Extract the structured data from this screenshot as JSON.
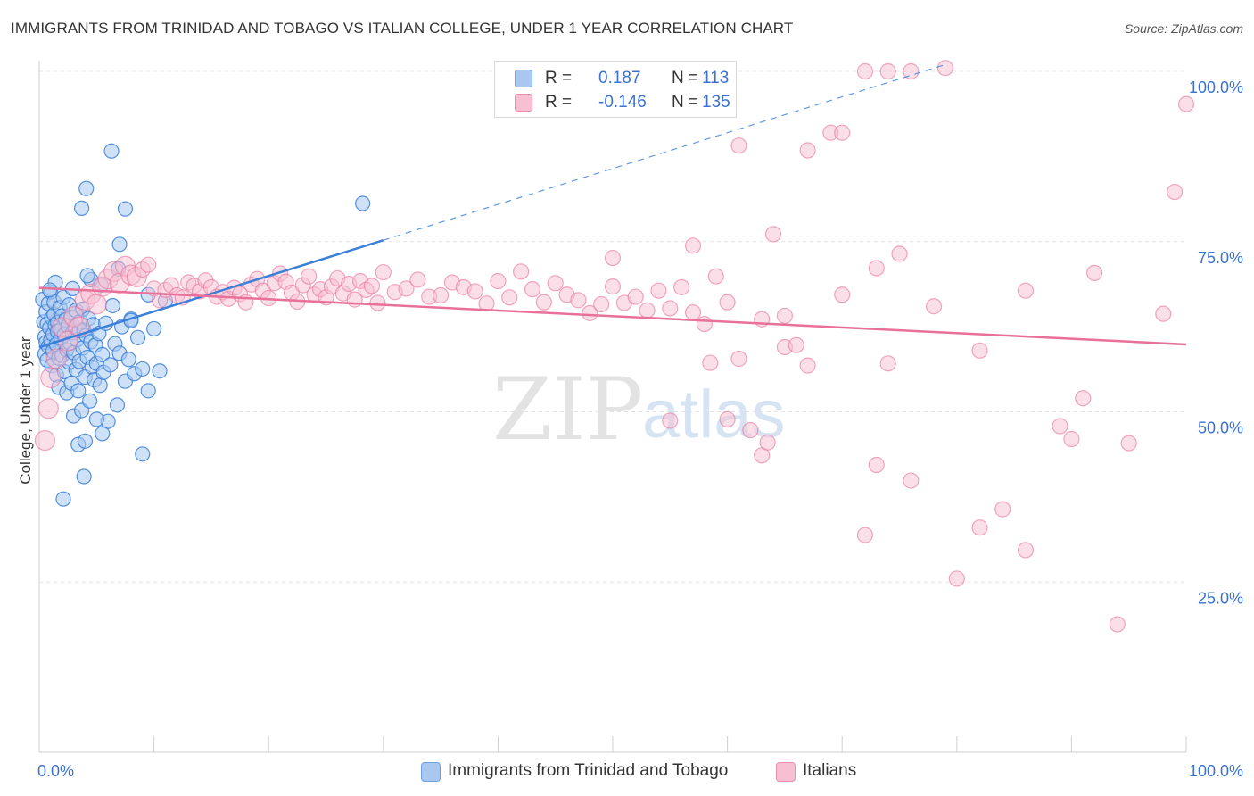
{
  "title": "IMMIGRANTS FROM TRINIDAD AND TOBAGO VS ITALIAN COLLEGE, UNDER 1 YEAR CORRELATION CHART",
  "source": "Source: ZipAtlas.com",
  "watermark": {
    "zip": "ZIP",
    "atlas": "atlas"
  },
  "stats": [
    {
      "r_label": "R =",
      "r_value": "0.187",
      "n_label": "N =",
      "n_value": "113",
      "color": "#a8c8f0",
      "border": "#6fa0e0"
    },
    {
      "r_label": "R =",
      "r_value": "-0.146",
      "n_label": "N =",
      "n_value": "135",
      "color": "#f7bfd2",
      "border": "#ea8eae"
    }
  ],
  "legend": [
    {
      "label": "Immigrants from Trinidad and Tobago",
      "color": "#a8c8f0",
      "border": "#6fa0e0"
    },
    {
      "label": "Italians",
      "color": "#f7bfd2",
      "border": "#ea8eae"
    }
  ],
  "colors": {
    "blue": "#3a7fd8",
    "blue_fill": "#a8c8f0",
    "pink": "#e8709a",
    "pink_fill": "#f7bfd2",
    "grid": "#e4e4e4",
    "tick_text": "#3a72d0"
  },
  "chart_data": {
    "type": "scatter",
    "xlabel": "",
    "ylabel": "College, Under 1 year",
    "xlim": [
      0,
      100
    ],
    "ylim": [
      0,
      100
    ],
    "x_tick_labels": [
      "0.0%",
      "100.0%"
    ],
    "y_ticks": [
      25,
      50,
      75,
      100
    ],
    "y_tick_labels": [
      "25.0%",
      "50.0%",
      "75.0%",
      "100.0%"
    ],
    "grid": true,
    "legend_position": "bottom",
    "series": [
      {
        "name": "Immigrants from Trinidad and Tobago",
        "r": 0.187,
        "n": 113,
        "trend": {
          "x0": 0,
          "y0": 59.5,
          "x1": 30,
          "y1": 75.2,
          "dashed_to_x": 79,
          "dashed_to_y": 101
        },
        "points": [
          [
            0.3,
            66.5
          ],
          [
            0.4,
            63.2
          ],
          [
            0.5,
            61.0
          ],
          [
            0.5,
            58.5
          ],
          [
            0.6,
            64.7
          ],
          [
            0.6,
            60.2
          ],
          [
            0.7,
            57.6
          ],
          [
            0.7,
            62.9
          ],
          [
            0.8,
            65.9
          ],
          [
            0.8,
            59.6
          ],
          [
            0.9,
            62.3
          ],
          [
            1.0,
            67.6
          ],
          [
            1.0,
            60.5
          ],
          [
            1.1,
            63.8
          ],
          [
            1.1,
            56.8
          ],
          [
            1.2,
            61.4
          ],
          [
            1.2,
            58.9
          ],
          [
            1.3,
            64.3
          ],
          [
            1.3,
            66.1
          ],
          [
            1.4,
            62.7
          ],
          [
            1.5,
            59.9
          ],
          [
            1.5,
            55.4
          ],
          [
            1.6,
            63.1
          ],
          [
            1.6,
            61.8
          ],
          [
            1.7,
            53.6
          ],
          [
            1.7,
            57.9
          ],
          [
            1.8,
            65.3
          ],
          [
            1.9,
            60.8
          ],
          [
            1.9,
            62.1
          ],
          [
            2.0,
            58.3
          ],
          [
            2.0,
            64.1
          ],
          [
            2.1,
            66.8
          ],
          [
            2.2,
            55.9
          ],
          [
            2.2,
            61.3
          ],
          [
            2.3,
            63.5
          ],
          [
            2.4,
            52.8
          ],
          [
            2.4,
            59.1
          ],
          [
            2.5,
            62.6
          ],
          [
            2.6,
            57.3
          ],
          [
            2.6,
            65.7
          ],
          [
            2.7,
            60.1
          ],
          [
            2.8,
            54.2
          ],
          [
            2.8,
            63.9
          ],
          [
            2.9,
            61.6
          ],
          [
            3.0,
            49.4
          ],
          [
            3.0,
            58.7
          ],
          [
            3.1,
            62.4
          ],
          [
            3.2,
            56.2
          ],
          [
            3.2,
            64.9
          ],
          [
            3.3,
            60.6
          ],
          [
            3.4,
            53.1
          ],
          [
            3.5,
            61.9
          ],
          [
            3.5,
            57.4
          ],
          [
            3.6,
            63.3
          ],
          [
            3.7,
            50.2
          ],
          [
            3.8,
            59.4
          ],
          [
            3.8,
            65.1
          ],
          [
            3.9,
            62.0
          ],
          [
            4.0,
            55.1
          ],
          [
            4.1,
            61.2
          ],
          [
            4.2,
            58.0
          ],
          [
            4.3,
            63.7
          ],
          [
            4.4,
            51.6
          ],
          [
            4.5,
            60.3
          ],
          [
            4.6,
            56.6
          ],
          [
            4.7,
            62.8
          ],
          [
            4.8,
            54.7
          ],
          [
            4.9,
            59.8
          ],
          [
            5.0,
            57.1
          ],
          [
            5.2,
            61.5
          ],
          [
            5.3,
            53.9
          ],
          [
            5.5,
            58.4
          ],
          [
            5.6,
            55.8
          ],
          [
            5.8,
            63.0
          ],
          [
            6.0,
            48.6
          ],
          [
            6.2,
            56.9
          ],
          [
            6.4,
            65.6
          ],
          [
            6.6,
            60.0
          ],
          [
            6.8,
            51.0
          ],
          [
            7.0,
            58.6
          ],
          [
            7.2,
            62.5
          ],
          [
            7.5,
            54.5
          ],
          [
            7.8,
            57.7
          ],
          [
            8.0,
            63.6
          ],
          [
            8.3,
            55.6
          ],
          [
            8.6,
            60.9
          ],
          [
            9.0,
            56.3
          ],
          [
            9.5,
            67.2
          ],
          [
            10.0,
            62.2
          ],
          [
            10.5,
            56.0
          ],
          [
            11.0,
            66.3
          ],
          [
            2.1,
            37.2
          ],
          [
            3.4,
            45.2
          ],
          [
            3.7,
            79.9
          ],
          [
            3.9,
            40.5
          ],
          [
            4.0,
            45.7
          ],
          [
            4.1,
            82.8
          ],
          [
            5.5,
            46.8
          ],
          [
            5.0,
            48.9
          ],
          [
            6.3,
            88.3
          ],
          [
            7.5,
            79.8
          ],
          [
            7.0,
            74.6
          ],
          [
            8.0,
            63.4
          ],
          [
            9.0,
            43.8
          ],
          [
            9.5,
            53.1
          ],
          [
            1.4,
            69.0
          ],
          [
            2.9,
            68.1
          ],
          [
            4.5,
            69.4
          ],
          [
            0.9,
            67.9
          ],
          [
            28.2,
            80.6
          ],
          [
            5.4,
            68.6
          ],
          [
            6.9,
            71.0
          ],
          [
            4.2,
            70.0
          ]
        ]
      },
      {
        "name": "Italians",
        "r": -0.146,
        "n": 135,
        "trend": {
          "x0": 0,
          "y0": 68.2,
          "x1": 100,
          "y1": 59.9
        },
        "points": [
          [
            0.5,
            45.8
          ],
          [
            0.8,
            50.5
          ],
          [
            1.0,
            55.0
          ],
          [
            1.5,
            57.8
          ],
          [
            2.0,
            62.4
          ],
          [
            2.5,
            60.4
          ],
          [
            3.0,
            64.0
          ],
          [
            3.5,
            62.5
          ],
          [
            4.0,
            66.4
          ],
          [
            4.5,
            67.3
          ],
          [
            5.0,
            65.8
          ],
          [
            5.5,
            68.4
          ],
          [
            6.0,
            69.5
          ],
          [
            6.5,
            70.6
          ],
          [
            7.0,
            68.9
          ],
          [
            7.5,
            71.4
          ],
          [
            8.0,
            70.1
          ],
          [
            8.5,
            69.8
          ],
          [
            9.0,
            70.9
          ],
          [
            9.5,
            71.6
          ],
          [
            10.0,
            68.1
          ],
          [
            10.5,
            66.4
          ],
          [
            11.0,
            67.9
          ],
          [
            11.5,
            68.6
          ],
          [
            12.0,
            67.1
          ],
          [
            12.5,
            66.8
          ],
          [
            13.0,
            69.0
          ],
          [
            13.5,
            68.5
          ],
          [
            14.0,
            67.7
          ],
          [
            14.5,
            69.3
          ],
          [
            15.0,
            68.3
          ],
          [
            15.5,
            66.9
          ],
          [
            16.0,
            67.6
          ],
          [
            16.5,
            66.6
          ],
          [
            17.0,
            68.2
          ],
          [
            17.5,
            67.3
          ],
          [
            18.0,
            66.1
          ],
          [
            18.5,
            68.7
          ],
          [
            19.0,
            69.5
          ],
          [
            19.5,
            67.8
          ],
          [
            20.0,
            66.7
          ],
          [
            20.5,
            68.9
          ],
          [
            21.0,
            70.3
          ],
          [
            21.5,
            69.1
          ],
          [
            22.0,
            67.5
          ],
          [
            22.5,
            66.2
          ],
          [
            23.0,
            68.6
          ],
          [
            23.5,
            69.9
          ],
          [
            24.0,
            67.2
          ],
          [
            24.5,
            68.0
          ],
          [
            25.0,
            66.8
          ],
          [
            25.5,
            68.4
          ],
          [
            26.0,
            69.6
          ],
          [
            26.5,
            67.4
          ],
          [
            27.0,
            68.8
          ],
          [
            27.5,
            66.5
          ],
          [
            28.0,
            69.2
          ],
          [
            28.5,
            67.9
          ],
          [
            29.0,
            68.5
          ],
          [
            29.5,
            66.0
          ],
          [
            30.0,
            70.5
          ],
          [
            31.0,
            67.6
          ],
          [
            32.0,
            68.1
          ],
          [
            33.0,
            69.4
          ],
          [
            34.0,
            66.9
          ],
          [
            35.0,
            67.1
          ],
          [
            36.0,
            69.0
          ],
          [
            37.0,
            68.3
          ],
          [
            38.0,
            67.7
          ],
          [
            39.0,
            65.9
          ],
          [
            40.0,
            69.2
          ],
          [
            41.0,
            66.8
          ],
          [
            42.0,
            70.6
          ],
          [
            43.0,
            68.0
          ],
          [
            44.0,
            66.1
          ],
          [
            45.0,
            68.9
          ],
          [
            46.0,
            67.2
          ],
          [
            47.0,
            66.4
          ],
          [
            48.0,
            64.5
          ],
          [
            49.0,
            65.8
          ],
          [
            50.0,
            68.4
          ],
          [
            51.0,
            66.0
          ],
          [
            52.0,
            66.9
          ],
          [
            53.0,
            64.9
          ],
          [
            54.0,
            67.8
          ],
          [
            55.0,
            65.2
          ],
          [
            56.0,
            68.3
          ],
          [
            57.0,
            64.6
          ],
          [
            58.0,
            62.9
          ],
          [
            59.0,
            69.9
          ],
          [
            60.0,
            66.1
          ],
          [
            61.0,
            57.8
          ],
          [
            63.0,
            63.6
          ],
          [
            65.0,
            64.1
          ],
          [
            67.0,
            56.8
          ],
          [
            70.0,
            67.2
          ],
          [
            73.0,
            71.1
          ],
          [
            75.0,
            73.2
          ],
          [
            78.0,
            65.5
          ],
          [
            82.0,
            59.0
          ],
          [
            86.0,
            67.8
          ],
          [
            89.0,
            47.9
          ],
          [
            92.0,
            70.4
          ],
          [
            95.0,
            45.4
          ],
          [
            98.0,
            64.4
          ],
          [
            55.0,
            48.7
          ],
          [
            58.5,
            57.2
          ],
          [
            60.0,
            48.9
          ],
          [
            62.0,
            47.3
          ],
          [
            63.0,
            43.6
          ],
          [
            63.5,
            45.5
          ],
          [
            65.0,
            59.5
          ],
          [
            66.0,
            59.8
          ],
          [
            67.0,
            88.4
          ],
          [
            69.0,
            91.0
          ],
          [
            72.0,
            31.9
          ],
          [
            73.0,
            42.2
          ],
          [
            74.0,
            57.1
          ],
          [
            76.0,
            39.9
          ],
          [
            80.0,
            25.5
          ],
          [
            82.0,
            33.0
          ],
          [
            84.0,
            35.7
          ],
          [
            86.0,
            29.7
          ],
          [
            90.0,
            46.0
          ],
          [
            91.0,
            52.0
          ],
          [
            94.0,
            18.8
          ],
          [
            100.0,
            95.2
          ],
          [
            99.0,
            82.3
          ],
          [
            64.0,
            76.1
          ],
          [
            57.0,
            74.4
          ],
          [
            50.0,
            72.6
          ],
          [
            61.0,
            89.1
          ],
          [
            70.0,
            91.0
          ],
          [
            72.0,
            100
          ],
          [
            74.0,
            100
          ],
          [
            76.0,
            100
          ],
          [
            79.0,
            100.5
          ]
        ]
      }
    ]
  }
}
